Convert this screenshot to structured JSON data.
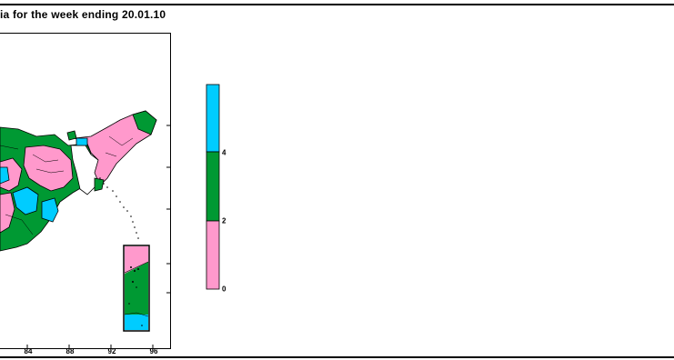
{
  "title": "ia for the week ending  20.01.10",
  "map": {
    "x_ticks": [
      "84",
      "88",
      "92",
      "96"
    ],
    "legend": {
      "colors": [
        "#ff99cc",
        "#009933",
        "#00ccff"
      ],
      "labels": [
        "0",
        "2",
        "4"
      ]
    }
  }
}
